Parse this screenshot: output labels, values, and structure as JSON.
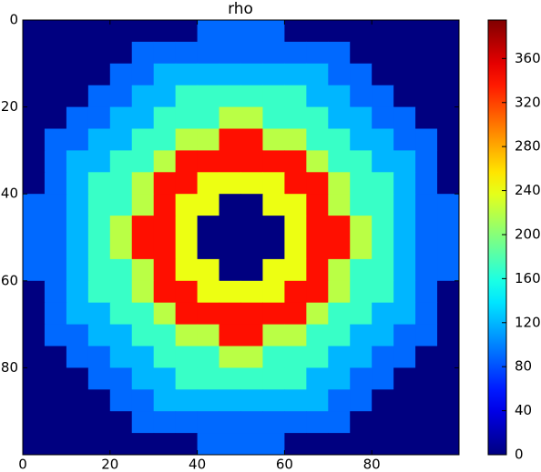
{
  "chart_data": {
    "type": "heatmap",
    "title": "rho",
    "colormap": "jet",
    "x": [
      2.5,
      7.5,
      12.5,
      17.5,
      22.5,
      27.5,
      32.5,
      37.5,
      42.5,
      47.5,
      52.5,
      57.5,
      62.5,
      67.5,
      72.5,
      77.5,
      82.5,
      87.5,
      92.5,
      97.5
    ],
    "y": [
      2.5,
      7.5,
      12.5,
      17.5,
      22.5,
      27.5,
      32.5,
      37.5,
      42.5,
      47.5,
      52.5,
      57.5,
      62.5,
      67.5,
      72.5,
      77.5,
      82.5,
      87.5,
      92.5,
      97.5
    ],
    "z": [
      [
        0,
        0,
        0,
        0,
        0,
        0,
        0,
        0,
        90,
        90,
        90,
        90,
        0,
        0,
        0,
        0,
        0,
        0,
        0,
        0
      ],
      [
        0,
        0,
        0,
        0,
        0,
        90,
        90,
        90,
        90,
        90,
        90,
        90,
        90,
        90,
        90,
        0,
        0,
        0,
        0,
        0
      ],
      [
        0,
        0,
        0,
        0,
        90,
        90,
        120,
        120,
        120,
        120,
        120,
        120,
        120,
        120,
        90,
        90,
        0,
        0,
        0,
        0
      ],
      [
        0,
        0,
        0,
        90,
        90,
        120,
        120,
        170,
        170,
        170,
        170,
        170,
        170,
        120,
        120,
        90,
        90,
        0,
        0,
        0
      ],
      [
        0,
        0,
        90,
        90,
        120,
        120,
        170,
        170,
        170,
        220,
        220,
        170,
        170,
        170,
        120,
        120,
        90,
        90,
        0,
        0
      ],
      [
        0,
        90,
        90,
        120,
        120,
        170,
        170,
        220,
        220,
        340,
        340,
        220,
        220,
        170,
        170,
        120,
        120,
        90,
        90,
        0
      ],
      [
        0,
        90,
        120,
        120,
        170,
        170,
        220,
        340,
        340,
        340,
        340,
        340,
        340,
        220,
        170,
        170,
        120,
        120,
        90,
        0
      ],
      [
        0,
        90,
        120,
        170,
        170,
        220,
        340,
        340,
        240,
        240,
        240,
        240,
        340,
        340,
        220,
        170,
        170,
        120,
        90,
        0
      ],
      [
        90,
        90,
        120,
        170,
        170,
        220,
        340,
        240,
        240,
        0,
        0,
        240,
        240,
        340,
        220,
        170,
        170,
        120,
        90,
        90
      ],
      [
        90,
        90,
        120,
        170,
        220,
        340,
        340,
        240,
        0,
        0,
        0,
        0,
        240,
        340,
        340,
        220,
        170,
        120,
        90,
        90
      ],
      [
        90,
        90,
        120,
        170,
        220,
        340,
        340,
        240,
        0,
        0,
        0,
        0,
        240,
        340,
        340,
        220,
        170,
        120,
        90,
        90
      ],
      [
        90,
        90,
        120,
        170,
        170,
        220,
        340,
        240,
        240,
        0,
        0,
        240,
        240,
        340,
        220,
        170,
        170,
        120,
        90,
        90
      ],
      [
        0,
        90,
        120,
        170,
        170,
        220,
        340,
        340,
        240,
        240,
        240,
        240,
        340,
        340,
        220,
        170,
        170,
        120,
        90,
        0
      ],
      [
        0,
        90,
        120,
        120,
        170,
        170,
        220,
        340,
        340,
        340,
        340,
        340,
        340,
        220,
        170,
        170,
        120,
        120,
        90,
        0
      ],
      [
        0,
        90,
        90,
        120,
        120,
        170,
        170,
        220,
        220,
        340,
        340,
        220,
        220,
        170,
        170,
        120,
        120,
        90,
        90,
        0
      ],
      [
        0,
        0,
        90,
        90,
        120,
        120,
        170,
        170,
        170,
        220,
        220,
        170,
        170,
        170,
        120,
        120,
        90,
        90,
        0,
        0
      ],
      [
        0,
        0,
        0,
        90,
        90,
        120,
        120,
        170,
        170,
        170,
        170,
        170,
        170,
        120,
        120,
        90,
        90,
        0,
        0,
        0
      ],
      [
        0,
        0,
        0,
        0,
        90,
        90,
        120,
        120,
        120,
        120,
        120,
        120,
        120,
        120,
        90,
        90,
        0,
        0,
        0,
        0
      ],
      [
        0,
        0,
        0,
        0,
        0,
        90,
        90,
        90,
        90,
        90,
        90,
        90,
        90,
        90,
        90,
        0,
        0,
        0,
        0,
        0
      ],
      [
        0,
        0,
        0,
        0,
        0,
        0,
        0,
        0,
        90,
        90,
        90,
        90,
        0,
        0,
        0,
        0,
        0,
        0,
        0,
        0
      ]
    ],
    "xlim": [
      0,
      100
    ],
    "ylim": [
      100,
      0
    ],
    "xticks": [
      0,
      20,
      40,
      60,
      80
    ],
    "yticks": [
      0,
      20,
      40,
      60,
      80
    ],
    "clim": [
      0,
      395
    ],
    "cticks": [
      0,
      40,
      80,
      120,
      160,
      200,
      240,
      280,
      320,
      360
    ]
  }
}
